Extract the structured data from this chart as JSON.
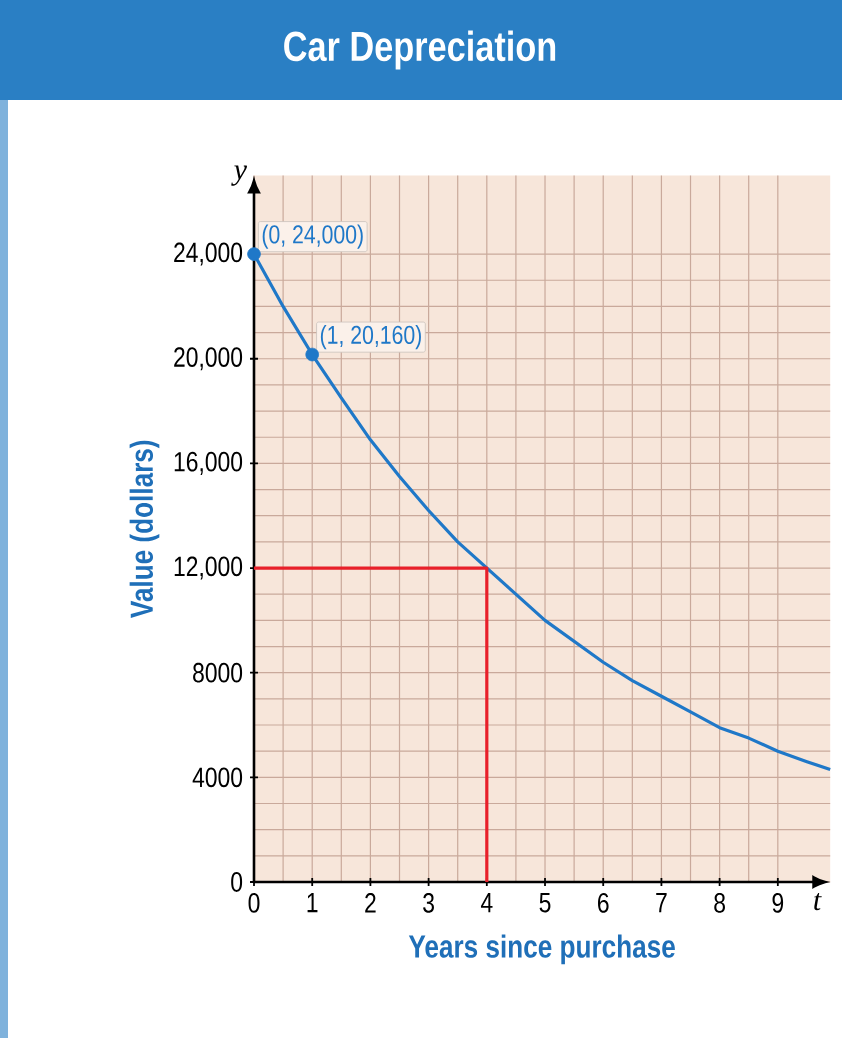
{
  "chart_data": {
    "type": "line",
    "title": "Car Depreciation",
    "xlabel": "Years since purchase",
    "ylabel": "Value (dollars)",
    "annotations": [
      "y",
      "t"
    ],
    "xlim": [
      0,
      9.9
    ],
    "ylim": [
      0,
      27000
    ],
    "xticks": [
      0,
      1,
      2,
      3,
      4,
      5,
      6,
      7,
      8,
      9
    ],
    "yticks": [
      {
        "value": 0,
        "label": "0"
      },
      {
        "value": 4000,
        "label": "4000"
      },
      {
        "value": 8000,
        "label": "8000"
      },
      {
        "value": 12000,
        "label": "12,000"
      },
      {
        "value": 16000,
        "label": "16,000"
      },
      {
        "value": 20000,
        "label": "20,000"
      },
      {
        "value": 24000,
        "label": "24,000"
      }
    ],
    "grid": true,
    "series": [
      {
        "color": "#1f78c8",
        "x": [
          0,
          0.5,
          1,
          1.5,
          2,
          2.5,
          3,
          3.5,
          4,
          4.5,
          5,
          5.5,
          6,
          6.5,
          7,
          7.5,
          8,
          8.5,
          9,
          9.5,
          9.9
        ],
        "values": [
          24000,
          22000,
          20160,
          18500,
          16900,
          15500,
          14200,
          13000,
          12000,
          11000,
          10000,
          9200,
          8400,
          7700,
          7100,
          6500,
          5900,
          5500,
          5000,
          4600,
          4300
        ]
      },
      {
        "type": "scatter",
        "color": "#1f78c8",
        "marker": "circle",
        "x": [
          0,
          1
        ],
        "values": [
          24000,
          20160
        ],
        "value_labels": [
          "(0, 24,000)",
          "(1, 20,160)"
        ]
      },
      {
        "type": "line",
        "color": "#e8202a",
        "x": [
          0,
          4,
          4
        ],
        "values": [
          12000,
          12000,
          0
        ]
      }
    ]
  }
}
